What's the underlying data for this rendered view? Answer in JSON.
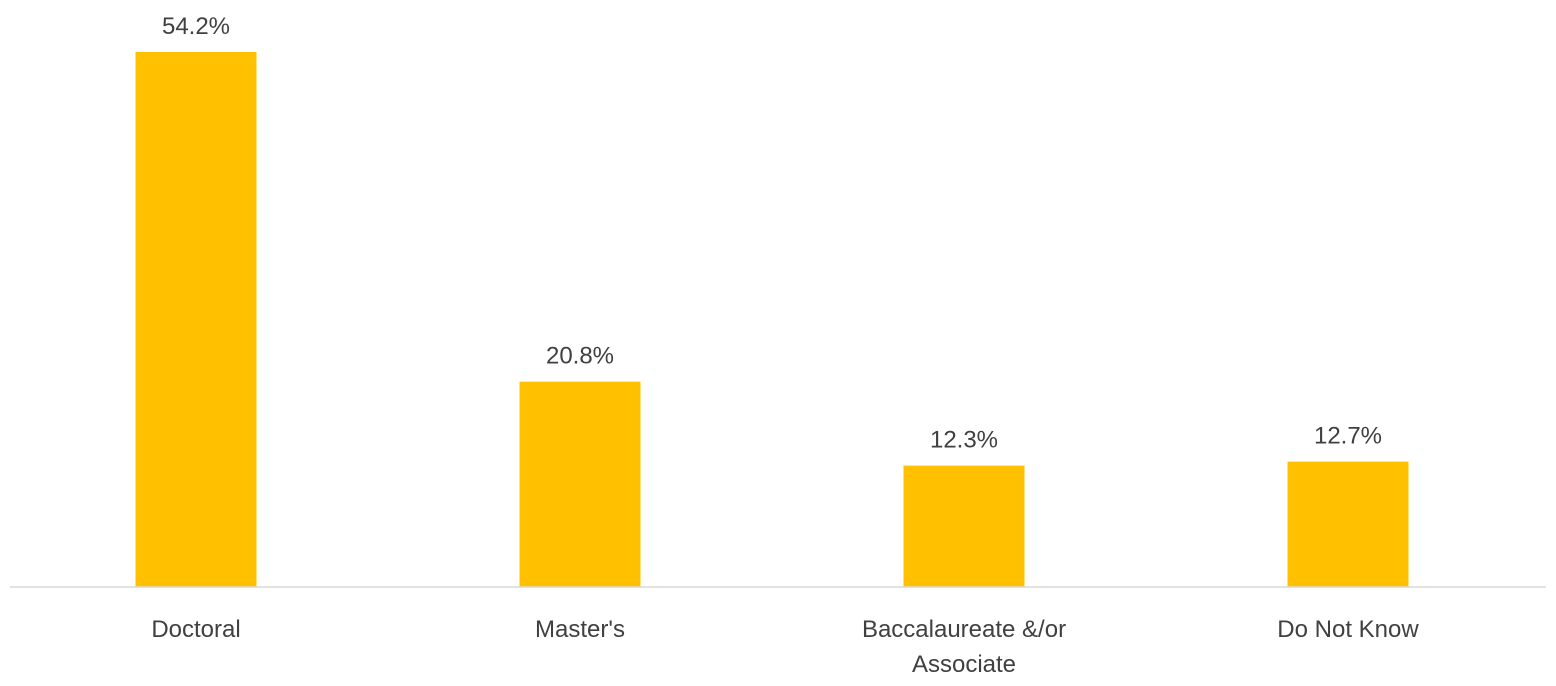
{
  "chart_data": {
    "type": "bar",
    "categories": [
      "Doctoral",
      "Master's",
      "Baccalaureate &/or Associate",
      "Do Not Know"
    ],
    "category_label_lines": [
      [
        "Doctoral"
      ],
      [
        "Master's"
      ],
      [
        "Baccalaureate &/or",
        "Associate"
      ],
      [
        "Do Not Know"
      ]
    ],
    "values": [
      54.2,
      20.8,
      12.3,
      12.7
    ],
    "data_labels": [
      "54.2%",
      "20.8%",
      "12.3%",
      "12.7%"
    ],
    "title": "",
    "xlabel": "",
    "ylabel": "",
    "ylim": [
      0,
      54.2
    ],
    "grid": false,
    "legend": "none",
    "bar_color": "#FFC000",
    "axis_color": "#D9D9D9",
    "text_color": "#404040"
  }
}
